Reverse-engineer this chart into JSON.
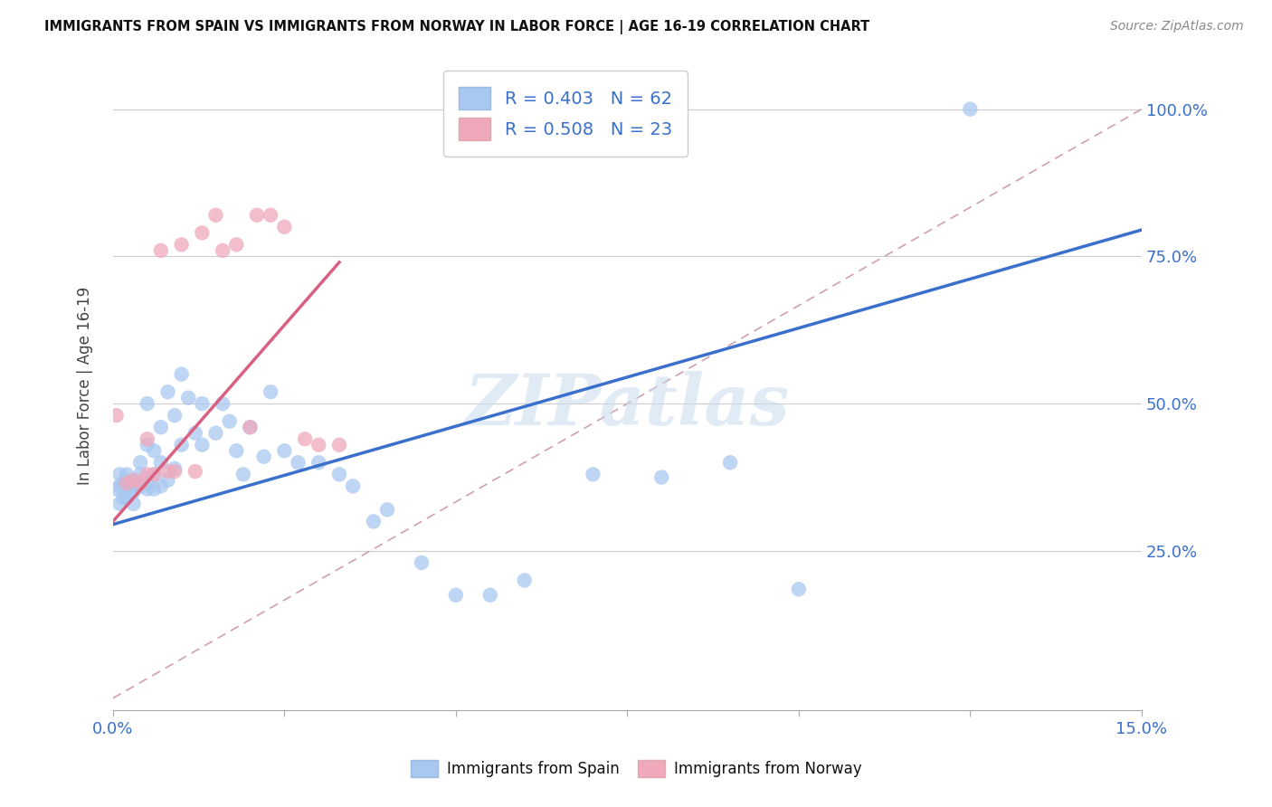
{
  "title": "IMMIGRANTS FROM SPAIN VS IMMIGRANTS FROM NORWAY IN LABOR FORCE | AGE 16-19 CORRELATION CHART",
  "source": "Source: ZipAtlas.com",
  "ylabel": "In Labor Force | Age 16-19",
  "xlim": [
    0.0,
    0.15
  ],
  "ylim": [
    -0.02,
    1.08
  ],
  "ytick_labels": [
    "25.0%",
    "50.0%",
    "75.0%",
    "100.0%"
  ],
  "ytick_positions": [
    0.25,
    0.5,
    0.75,
    1.0
  ],
  "spain_color": "#A8C8F0",
  "norway_color": "#F0A8BC",
  "spain_line_color": "#3A70CC",
  "norway_line_color": "#D96080",
  "ref_line_color": "#D0A0B0",
  "spain_R": 0.403,
  "spain_N": 62,
  "norway_R": 0.508,
  "norway_N": 23,
  "watermark": "ZIPatlas",
  "spain_x": [
    0.0005,
    0.001,
    0.001,
    0.001,
    0.0015,
    0.0015,
    0.002,
    0.002,
    0.002,
    0.002,
    0.002,
    0.003,
    0.003,
    0.003,
    0.003,
    0.004,
    0.004,
    0.004,
    0.005,
    0.005,
    0.005,
    0.005,
    0.006,
    0.006,
    0.006,
    0.007,
    0.007,
    0.007,
    0.008,
    0.008,
    0.009,
    0.009,
    0.01,
    0.01,
    0.011,
    0.012,
    0.013,
    0.013,
    0.015,
    0.016,
    0.017,
    0.018,
    0.019,
    0.02,
    0.022,
    0.023,
    0.025,
    0.027,
    0.03,
    0.033,
    0.035,
    0.038,
    0.04,
    0.045,
    0.05,
    0.055,
    0.06,
    0.07,
    0.08,
    0.09,
    0.1,
    0.125
  ],
  "spain_y": [
    0.355,
    0.33,
    0.36,
    0.38,
    0.34,
    0.365,
    0.34,
    0.355,
    0.36,
    0.37,
    0.38,
    0.33,
    0.35,
    0.36,
    0.37,
    0.36,
    0.38,
    0.4,
    0.355,
    0.365,
    0.43,
    0.5,
    0.355,
    0.38,
    0.42,
    0.36,
    0.4,
    0.46,
    0.37,
    0.52,
    0.39,
    0.48,
    0.43,
    0.55,
    0.51,
    0.45,
    0.43,
    0.5,
    0.45,
    0.5,
    0.47,
    0.42,
    0.38,
    0.46,
    0.41,
    0.52,
    0.42,
    0.4,
    0.4,
    0.38,
    0.36,
    0.3,
    0.32,
    0.23,
    0.175,
    0.175,
    0.2,
    0.38,
    0.375,
    0.4,
    0.185,
    1.0
  ],
  "norway_x": [
    0.0005,
    0.002,
    0.003,
    0.004,
    0.005,
    0.005,
    0.006,
    0.007,
    0.008,
    0.009,
    0.01,
    0.012,
    0.013,
    0.015,
    0.016,
    0.018,
    0.02,
    0.021,
    0.023,
    0.025,
    0.028,
    0.03,
    0.033
  ],
  "norway_y": [
    0.48,
    0.365,
    0.37,
    0.365,
    0.38,
    0.44,
    0.38,
    0.76,
    0.385,
    0.385,
    0.77,
    0.385,
    0.79,
    0.82,
    0.76,
    0.77,
    0.46,
    0.82,
    0.82,
    0.8,
    0.44,
    0.43,
    0.43
  ],
  "spain_line_x0": 0.0,
  "spain_line_y0": 0.295,
  "spain_line_x1": 0.15,
  "spain_line_y1": 0.795,
  "norway_line_x0": 0.0,
  "norway_line_y0": 0.3,
  "norway_line_x1": 0.033,
  "norway_line_y1": 0.74,
  "ref_line_x0": 0.0,
  "ref_line_y0": 0.0,
  "ref_line_x1": 0.15,
  "ref_line_y1": 1.0
}
